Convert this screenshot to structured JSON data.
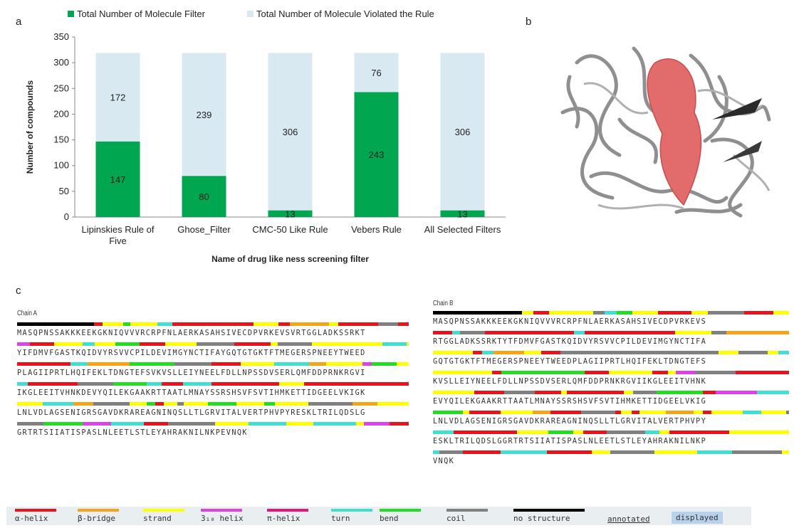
{
  "panels": {
    "a": "a",
    "b": "b",
    "c": "c"
  },
  "chart_data": {
    "type": "bar",
    "stacked": true,
    "categories": [
      "Lipinskies Rule of Five",
      "Ghose_Filter",
      "CMC-50 Like Rule",
      "Vebers Rule",
      "All Selected Filters"
    ],
    "category_lines": [
      [
        "Lipinskies Rule of",
        "Five"
      ],
      [
        "Ghose_Filter"
      ],
      [
        "CMC-50 Like Rule"
      ],
      [
        "Vebers Rule"
      ],
      [
        "All Selected Filters"
      ]
    ],
    "series": [
      {
        "name": "Total Number of Molecule Filter",
        "values": [
          147,
          80,
          13,
          243,
          13
        ],
        "color": "#00a650"
      },
      {
        "name": "Total Number of  Molecule Violated the Rule",
        "values": [
          172,
          239,
          306,
          76,
          306
        ],
        "color": "#d9e9f1"
      }
    ],
    "xlabel": "Name of drug like ness screening filter",
    "ylabel": "Number of compounds",
    "ylim": [
      0,
      350
    ],
    "yticks": [
      0,
      50,
      100,
      150,
      200,
      250,
      300,
      350
    ],
    "legend_position": "top",
    "grid": false
  },
  "sequence": {
    "chainA": {
      "title": "Chain A",
      "lines": [
        "MASQPNSSAKKKEEKGKNIQVVVRCRPFNLAERKASAHSIVECDPVRKEVSVRTGGLADKSSRKT",
        "YIFDMVFGASTKQIDVYRSVVCPILDEVIMGYNCTIFAYGQTGTGKTFTMEGERSPNEEYTWEED",
        "PLAGIIPRTLHQIFEKLTDNGTEFSVKVSLLEIYNEELFDLLNPSSDVSERLQMFDDPRNKRGVI",
        "IKGLEEITVHNKDEVYQILEKGAAKRTTAATLMNAYSSRSHSVFSVTIHMKETTIDGEELVKIGK",
        "LNLVDLAGSENIGRSGAVDKRAREAGNINQSLLTLGRVITALVERTPHVPYRESKLTRILQDSLG",
        "GRTRTSIIATISPASLNLEETLSTLEYAHRAKNILNKPEVNQK"
      ]
    },
    "chainB": {
      "title": "Chain B",
      "lines": [
        "MASQPNSSAKKKEEKGKNIQVVVRCRPFNLAERKASAHSIVECDPVRKEVS",
        "RTGGLADKSSRKTYTFDMVFGASTKQIDVYRSVVCPILDEVIMGYNCTIFA",
        "GQTGTGKTFTMEGERSPNEEYTWEEDPLAGIIPRTLHQIFEKLTDNGTEFS",
        "KVSLLEIYNEELFDLLNPSSDVSERLQMFDDPRNKRGVIIKGLEEITVHNK",
        "EVYQILEKGAAKRTTAATLMNAYSSRSHSVFSVTIHMKETTIDGEELVKIG",
        "LNLVDLAGSENIGRSGAVDKRAREAGNINQSLLTLGRVITALVERTPHVPY",
        "ESKLTRILQDSLGGRTRTSIIATISPASLNLEETLSTLEYAHRAKNILNKP",
        "VNQK"
      ]
    }
  },
  "legend": {
    "items": [
      {
        "label": "α-helix",
        "color": "#e8131b"
      },
      {
        "label": "β-bridge",
        "color": "#f5a31a"
      },
      {
        "label": "strand",
        "color": "#ffff00"
      },
      {
        "label": "3₁₀ helix",
        "color": "#e040e8"
      },
      {
        "label": "π-helix",
        "color": "#e8137a"
      },
      {
        "label": "turn",
        "color": "#40e0d0"
      },
      {
        "label": "bend",
        "color": "#22dd22"
      },
      {
        "label": "coil",
        "color": "#808080"
      },
      {
        "label": "no structure",
        "color": "#000000"
      }
    ],
    "annotated": "annotated",
    "displayed": "displayed"
  }
}
